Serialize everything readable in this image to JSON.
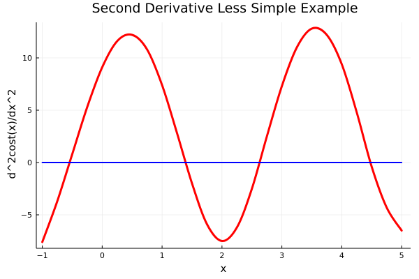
{
  "chart_data": {
    "type": "line",
    "title": "Second Derivative Less Simple Example",
    "xlabel": "x",
    "ylabel": "d^2cost(x)/dx^2",
    "xlim": [
      -1.1,
      5.15
    ],
    "ylim": [
      -8.2,
      13.4
    ],
    "x_ticks": [
      -1,
      0,
      1,
      2,
      3,
      4,
      5
    ],
    "x_tick_labels": [
      "−1",
      "0",
      "1",
      "2",
      "3",
      "4",
      "5"
    ],
    "y_ticks": [
      -5,
      0,
      5,
      10
    ],
    "y_tick_labels": [
      "−5",
      "0",
      "5",
      "10"
    ],
    "grid": true,
    "legend": "none",
    "series": [
      {
        "color": "#ff0000",
        "x": [
          -1.0,
          -0.75,
          -0.5,
          -0.25,
          0.0,
          0.25,
          0.5,
          0.75,
          1.0,
          1.25,
          1.5,
          1.75,
          2.0,
          2.25,
          2.5,
          2.75,
          3.0,
          3.25,
          3.5,
          3.75,
          4.0,
          4.25,
          4.5,
          4.75,
          5.0
        ],
        "y": [
          -7.6,
          -3.7,
          0.8,
          5.3,
          9.1,
          11.6,
          12.2,
          10.8,
          7.4,
          2.8,
          -2.0,
          -5.9,
          -7.5,
          -6.2,
          -2.5,
          2.5,
          7.3,
          11.0,
          12.8,
          12.2,
          9.4,
          4.8,
          -0.4,
          -4.3,
          -6.5
        ]
      },
      {
        "color": "#0000ff",
        "x": [
          -1.0,
          5.0
        ],
        "y": [
          0,
          0
        ]
      }
    ]
  }
}
